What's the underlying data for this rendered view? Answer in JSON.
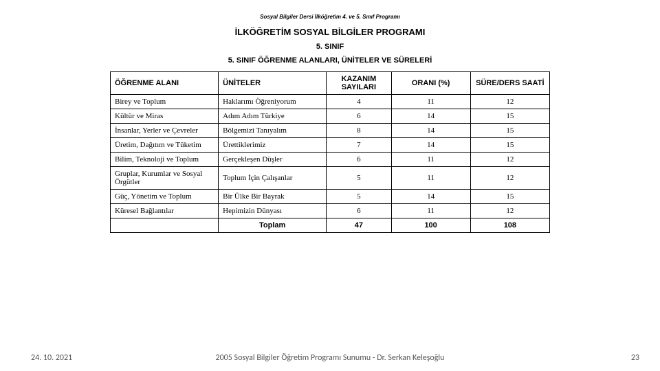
{
  "header": {
    "pre": "Sosyal Bilgiler Dersi İlköğretim 4. ve 5. Sınıf Programı",
    "main": "İLKÖĞRETİM SOSYAL BİLGİLER PROGRAMI",
    "sub": "5. SINIF",
    "sub2": "5. SINIF ÖĞRENME ALANLARI, ÜNİTELER VE SÜRELERİ"
  },
  "table": {
    "columns": {
      "alan": "ÖĞRENME ALANI",
      "uniteler": "ÜNİTELER",
      "kazanim": "KAZANIM SAYILARI",
      "oran": "ORANI (%)",
      "sure": "SÜRE/DERS SAATİ"
    },
    "rows": [
      {
        "alan": "Birey ve Toplum",
        "unite": "Haklarımı Öğreniyorum",
        "kazanim": "4",
        "oran": "11",
        "sure": "12"
      },
      {
        "alan": "Kültür ve Miras",
        "unite": "Adım Adım Türkiye",
        "kazanim": "6",
        "oran": "14",
        "sure": "15"
      },
      {
        "alan": "İnsanlar, Yerler ve Çevreler",
        "unite": "Bölgemizi Tanıyalım",
        "kazanim": "8",
        "oran": "14",
        "sure": "15"
      },
      {
        "alan": "Üretim, Dağıtım ve Tüketim",
        "unite": "Ürettiklerimiz",
        "kazanim": "7",
        "oran": "14",
        "sure": "15"
      },
      {
        "alan": "Bilim, Teknoloji ve Toplum",
        "unite": "Gerçekleşen Düşler",
        "kazanim": "6",
        "oran": "11",
        "sure": "12"
      },
      {
        "alan": "Gruplar, Kurumlar ve Sosyal Örgütler",
        "unite": "Toplum İçin Çalışanlar",
        "kazanim": "5",
        "oran": "11",
        "sure": "12"
      },
      {
        "alan": "Güç, Yönetim ve Toplum",
        "unite": "Bir Ülke Bir Bayrak",
        "kazanim": "5",
        "oran": "14",
        "sure": "15"
      },
      {
        "alan": "Küresel Bağlantılar",
        "unite": "Hepimizin Dünyası",
        "kazanim": "6",
        "oran": "11",
        "sure": "12"
      }
    ],
    "total": {
      "label": "Toplam",
      "kazanim": "47",
      "oran": "100",
      "sure": "108"
    }
  },
  "footer": {
    "date": "24. 10. 2021",
    "text": "2005 Sosyal Bilgiler Öğretim Programı Sunumu - Dr. Serkan Keleşoğlu",
    "page": "23"
  }
}
